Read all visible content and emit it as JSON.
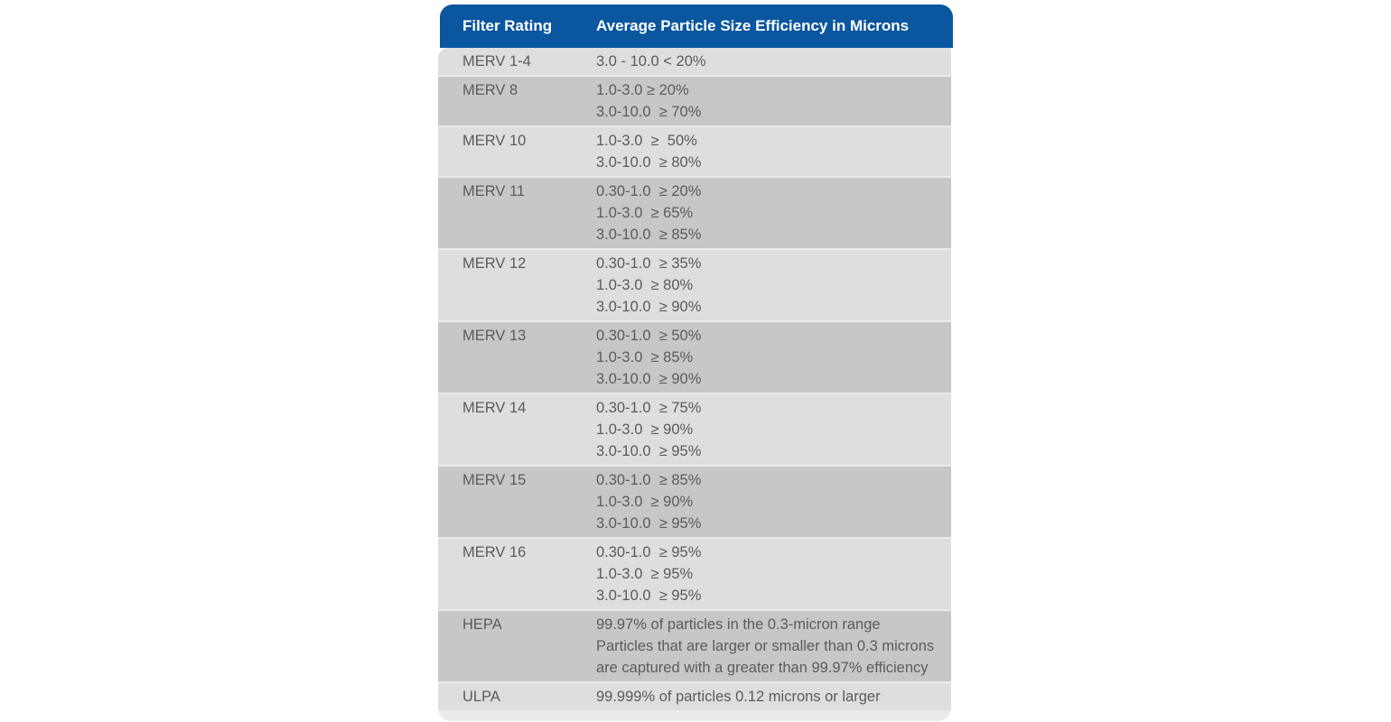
{
  "chart_data": {
    "type": "table",
    "title": "",
    "columns": [
      "Filter Rating",
      "Average Particle Size Efficiency in Microns"
    ],
    "rows": [
      {
        "rating": "MERV 1-4",
        "shade": "light",
        "lines": [
          "3.0 - 10.0 < 20%"
        ]
      },
      {
        "rating": "MERV 8",
        "shade": "dark",
        "lines": [
          "1.0-3.0 ≥ 20%",
          "3.0-10.0  ≥ 70%"
        ]
      },
      {
        "rating": "MERV 10",
        "shade": "light",
        "lines": [
          "1.0-3.0  ≥  50%",
          "3.0-10.0  ≥ 80%"
        ]
      },
      {
        "rating": "MERV 11",
        "shade": "dark",
        "lines": [
          "0.30-1.0  ≥ 20%",
          "1.0-3.0  ≥ 65%",
          "3.0-10.0  ≥ 85%"
        ]
      },
      {
        "rating": "MERV 12",
        "shade": "light",
        "lines": [
          "0.30-1.0  ≥ 35%",
          "1.0-3.0  ≥ 80%",
          "3.0-10.0  ≥ 90%"
        ]
      },
      {
        "rating": "MERV 13",
        "shade": "dark",
        "lines": [
          "0.30-1.0  ≥ 50%",
          "1.0-3.0  ≥ 85%",
          "3.0-10.0  ≥ 90%"
        ]
      },
      {
        "rating": "MERV 14",
        "shade": "light",
        "lines": [
          "0.30-1.0  ≥ 75%",
          "1.0-3.0  ≥ 90%",
          "3.0-10.0  ≥ 95%"
        ]
      },
      {
        "rating": "MERV 15",
        "shade": "dark",
        "lines": [
          "0.30-1.0  ≥ 85%",
          "1.0-3.0  ≥ 90%",
          "3.0-10.0  ≥ 95%"
        ]
      },
      {
        "rating": "MERV 16",
        "shade": "light",
        "lines": [
          "0.30-1.0  ≥ 95%",
          "1.0-3.0  ≥ 95%",
          "3.0-10.0  ≥ 95%"
        ]
      },
      {
        "rating": "HEPA",
        "shade": "dark",
        "lines": [
          "99.97% of particles in the 0.3-micron range",
          "Particles that are larger or smaller than 0.3 microns",
          "are captured with a greater than 99.97% efficiency"
        ]
      },
      {
        "rating": "ULPA",
        "shade": "light",
        "lines": [
          "99.999% of particles 0.12 microns or larger"
        ]
      }
    ],
    "layout": {
      "legend": "none",
      "grid": "row-striped",
      "header_position": "top"
    }
  },
  "colors": {
    "header_bg": "#0a569f",
    "header_text": "#ffffff",
    "row_light": "#dddee0",
    "row_dark": "#c6c7c9",
    "panel_bg": "#eaebed",
    "body_text": "#5a5b5d",
    "page_bg": "#ffffff"
  }
}
